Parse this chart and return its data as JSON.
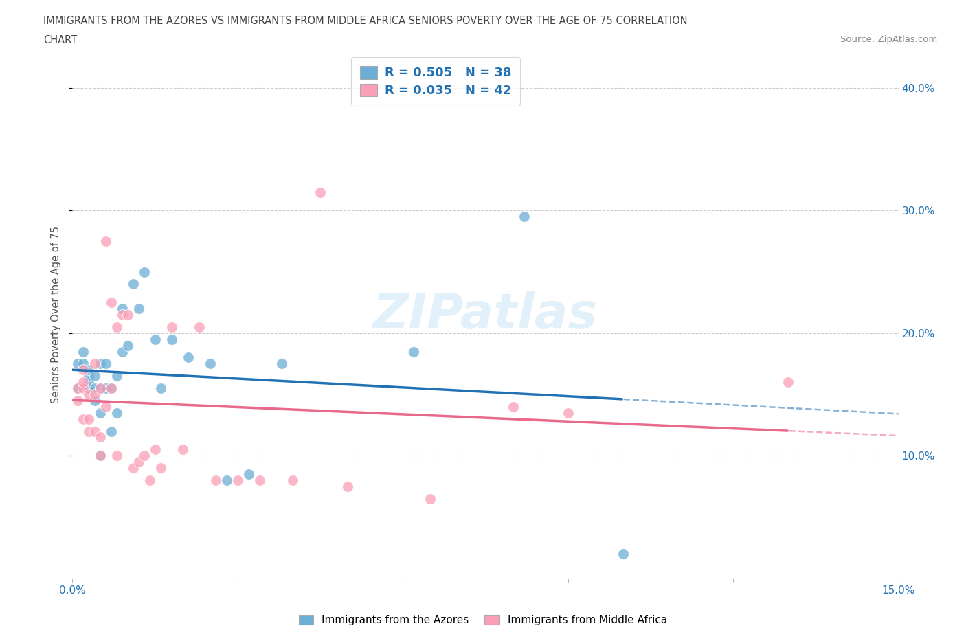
{
  "title_line1": "IMMIGRANTS FROM THE AZORES VS IMMIGRANTS FROM MIDDLE AFRICA SENIORS POVERTY OVER THE AGE OF 75 CORRELATION",
  "title_line2": "CHART",
  "source": "Source: ZipAtlas.com",
  "ylabel": "Seniors Poverty Over the Age of 75",
  "xlim": [
    0.0,
    0.15
  ],
  "ylim": [
    0.0,
    0.43
  ],
  "blue_color": "#6baed6",
  "pink_color": "#fa9fb5",
  "blue_line_color": "#2171b5",
  "pink_line_color": "#e8698a",
  "blue_R": 0.505,
  "blue_N": 38,
  "pink_R": 0.035,
  "pink_N": 42,
  "legend_label_blue": "Immigrants from the Azores",
  "legend_label_pink": "Immigrants from Middle Africa",
  "watermark": "ZIPatlas",
  "azores_x": [
    0.001,
    0.001,
    0.002,
    0.002,
    0.003,
    0.003,
    0.003,
    0.003,
    0.004,
    0.004,
    0.004,
    0.005,
    0.005,
    0.005,
    0.005,
    0.006,
    0.006,
    0.007,
    0.007,
    0.008,
    0.008,
    0.009,
    0.009,
    0.01,
    0.011,
    0.012,
    0.013,
    0.015,
    0.016,
    0.018,
    0.021,
    0.025,
    0.028,
    0.032,
    0.038,
    0.062,
    0.082,
    0.1
  ],
  "azores_y": [
    0.155,
    0.175,
    0.175,
    0.185,
    0.155,
    0.16,
    0.165,
    0.17,
    0.145,
    0.155,
    0.165,
    0.1,
    0.135,
    0.155,
    0.175,
    0.155,
    0.175,
    0.12,
    0.155,
    0.135,
    0.165,
    0.185,
    0.22,
    0.19,
    0.24,
    0.22,
    0.25,
    0.195,
    0.155,
    0.195,
    0.18,
    0.175,
    0.08,
    0.085,
    0.175,
    0.185,
    0.295,
    0.02
  ],
  "africa_x": [
    0.001,
    0.001,
    0.002,
    0.002,
    0.002,
    0.002,
    0.003,
    0.003,
    0.003,
    0.004,
    0.004,
    0.004,
    0.005,
    0.005,
    0.005,
    0.006,
    0.006,
    0.007,
    0.007,
    0.008,
    0.008,
    0.009,
    0.01,
    0.011,
    0.012,
    0.013,
    0.014,
    0.015,
    0.016,
    0.018,
    0.02,
    0.023,
    0.026,
    0.03,
    0.034,
    0.04,
    0.045,
    0.05,
    0.065,
    0.08,
    0.09,
    0.13
  ],
  "africa_y": [
    0.145,
    0.155,
    0.13,
    0.155,
    0.16,
    0.17,
    0.12,
    0.13,
    0.15,
    0.12,
    0.15,
    0.175,
    0.1,
    0.115,
    0.155,
    0.14,
    0.275,
    0.155,
    0.225,
    0.1,
    0.205,
    0.215,
    0.215,
    0.09,
    0.095,
    0.1,
    0.08,
    0.105,
    0.09,
    0.205,
    0.105,
    0.205,
    0.08,
    0.08,
    0.08,
    0.08,
    0.315,
    0.075,
    0.065,
    0.14,
    0.135,
    0.16
  ]
}
